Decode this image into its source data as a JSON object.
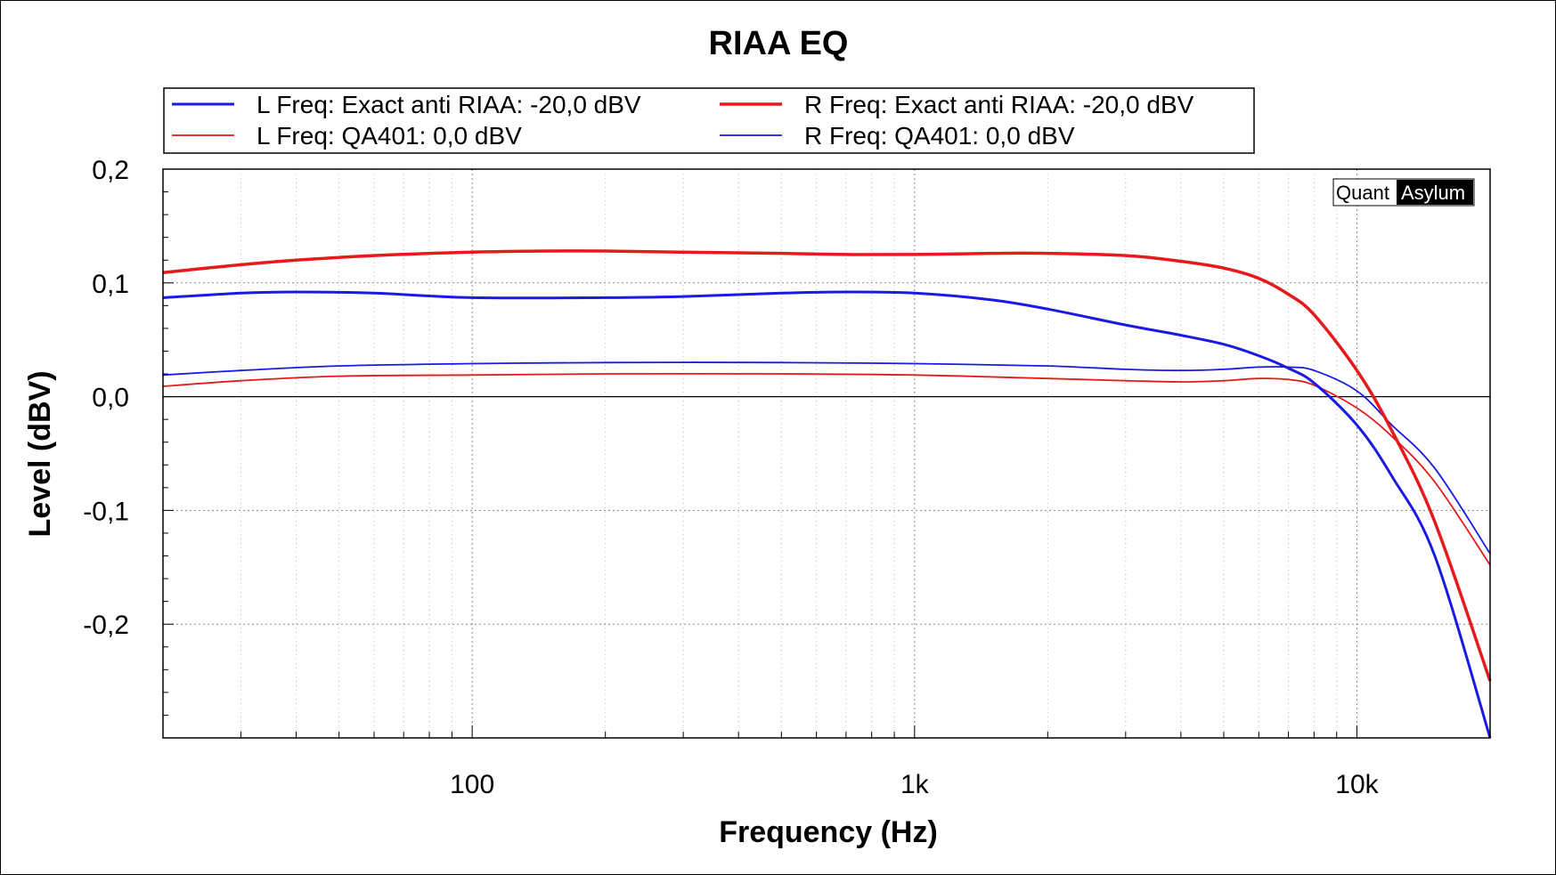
{
  "chart_data": {
    "type": "line",
    "title": "RIAA EQ",
    "xlabel": "Frequency (Hz)",
    "ylabel": "Level (dBV)",
    "x_scale": "log",
    "xlim": [
      20,
      20000
    ],
    "ylim": [
      -0.3,
      0.2
    ],
    "x_ticks": [
      {
        "value": 100,
        "label": "100"
      },
      {
        "value": 1000,
        "label": "1k"
      },
      {
        "value": 10000,
        "label": "10k"
      }
    ],
    "y_ticks": [
      {
        "value": 0.2,
        "label": "0,2"
      },
      {
        "value": 0.1,
        "label": "0,1"
      },
      {
        "value": 0.0,
        "label": "0,0"
      },
      {
        "value": -0.1,
        "label": "-0,1"
      },
      {
        "value": -0.2,
        "label": "-0,2"
      }
    ],
    "grid": true,
    "legend_position": "top",
    "watermark": {
      "part1": "Quant",
      "part2": "Asylum"
    },
    "series": [
      {
        "name": "L Freq: Exact anti RIAA: -20,0 dBV",
        "color": "#1a1ae6",
        "width": 3,
        "points": [
          [
            20,
            0.087
          ],
          [
            30,
            0.091
          ],
          [
            40,
            0.092
          ],
          [
            60,
            0.091
          ],
          [
            100,
            0.087
          ],
          [
            200,
            0.087
          ],
          [
            300,
            0.088
          ],
          [
            500,
            0.091
          ],
          [
            700,
            0.092
          ],
          [
            1000,
            0.091
          ],
          [
            1500,
            0.085
          ],
          [
            2000,
            0.077
          ],
          [
            3000,
            0.063
          ],
          [
            4000,
            0.054
          ],
          [
            5000,
            0.046
          ],
          [
            6000,
            0.036
          ],
          [
            7000,
            0.025
          ],
          [
            8000,
            0.012
          ],
          [
            10000,
            -0.025
          ],
          [
            12000,
            -0.07
          ],
          [
            15000,
            -0.14
          ],
          [
            20000,
            -0.3
          ]
        ]
      },
      {
        "name": "R Freq: Exact anti RIAA: -20,0 dBV",
        "color": "#e61a1a",
        "width": 3.5,
        "points": [
          [
            20,
            0.109
          ],
          [
            30,
            0.116
          ],
          [
            40,
            0.12
          ],
          [
            60,
            0.124
          ],
          [
            100,
            0.127
          ],
          [
            150,
            0.128
          ],
          [
            200,
            0.128
          ],
          [
            300,
            0.127
          ],
          [
            500,
            0.126
          ],
          [
            700,
            0.125
          ],
          [
            1000,
            0.125
          ],
          [
            1500,
            0.126
          ],
          [
            2000,
            0.126
          ],
          [
            3000,
            0.124
          ],
          [
            4000,
            0.119
          ],
          [
            5000,
            0.113
          ],
          [
            6000,
            0.104
          ],
          [
            7000,
            0.09
          ],
          [
            8000,
            0.072
          ],
          [
            10000,
            0.023
          ],
          [
            12000,
            -0.03
          ],
          [
            15000,
            -0.11
          ],
          [
            20000,
            -0.25
          ]
        ]
      },
      {
        "name": "L Freq: QA401: 0,0 dBV",
        "color": "#e61a1a",
        "width": 1.8,
        "points": [
          [
            20,
            0.009
          ],
          [
            30,
            0.014
          ],
          [
            50,
            0.018
          ],
          [
            100,
            0.019
          ],
          [
            200,
            0.02
          ],
          [
            500,
            0.02
          ],
          [
            1000,
            0.019
          ],
          [
            2000,
            0.016
          ],
          [
            3000,
            0.014
          ],
          [
            4000,
            0.013
          ],
          [
            5000,
            0.014
          ],
          [
            6000,
            0.016
          ],
          [
            7000,
            0.015
          ],
          [
            8000,
            0.01
          ],
          [
            10000,
            -0.01
          ],
          [
            12000,
            -0.035
          ],
          [
            15000,
            -0.075
          ],
          [
            20000,
            -0.148
          ]
        ]
      },
      {
        "name": "R Freq: QA401: 0,0 dBV",
        "color": "#1a1ae6",
        "width": 1.8,
        "points": [
          [
            20,
            0.019
          ],
          [
            30,
            0.023
          ],
          [
            50,
            0.027
          ],
          [
            100,
            0.029
          ],
          [
            200,
            0.03
          ],
          [
            500,
            0.03
          ],
          [
            1000,
            0.029
          ],
          [
            2000,
            0.027
          ],
          [
            3000,
            0.024
          ],
          [
            4000,
            0.023
          ],
          [
            5000,
            0.024
          ],
          [
            6000,
            0.026
          ],
          [
            7000,
            0.026
          ],
          [
            8000,
            0.023
          ],
          [
            10000,
            0.005
          ],
          [
            12000,
            -0.025
          ],
          [
            15000,
            -0.063
          ],
          [
            20000,
            -0.138
          ]
        ]
      }
    ]
  }
}
